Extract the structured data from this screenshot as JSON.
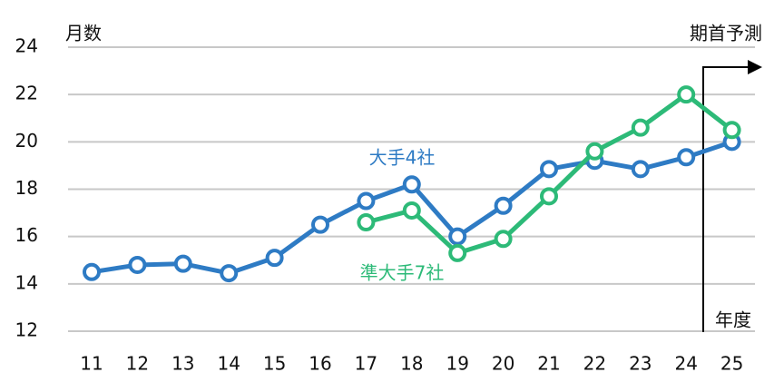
{
  "chart_data": {
    "type": "line",
    "y_axis_label": "月数",
    "x_axis_label": "年度",
    "annotation": "期首予測",
    "categories": [
      "11",
      "12",
      "13",
      "14",
      "15",
      "16",
      "17",
      "18",
      "19",
      "20",
      "21",
      "22",
      "23",
      "24",
      "25"
    ],
    "series": [
      {
        "name": "大手4社",
        "color": "#2e7bc4",
        "values": [
          14.5,
          14.8,
          14.85,
          14.45,
          15.1,
          16.5,
          17.5,
          18.2,
          16.0,
          17.3,
          18.85,
          19.2,
          18.85,
          19.35,
          20.0
        ]
      },
      {
        "name": "準大手7社",
        "color": "#2dba78",
        "values": [
          null,
          null,
          null,
          null,
          null,
          null,
          16.6,
          17.1,
          15.3,
          15.9,
          17.7,
          19.6,
          20.6,
          22.0,
          20.5
        ]
      }
    ],
    "ylim": [
      12,
      24
    ],
    "yticks": [
      12,
      14,
      16,
      18,
      20,
      22,
      24
    ],
    "grid": true
  }
}
